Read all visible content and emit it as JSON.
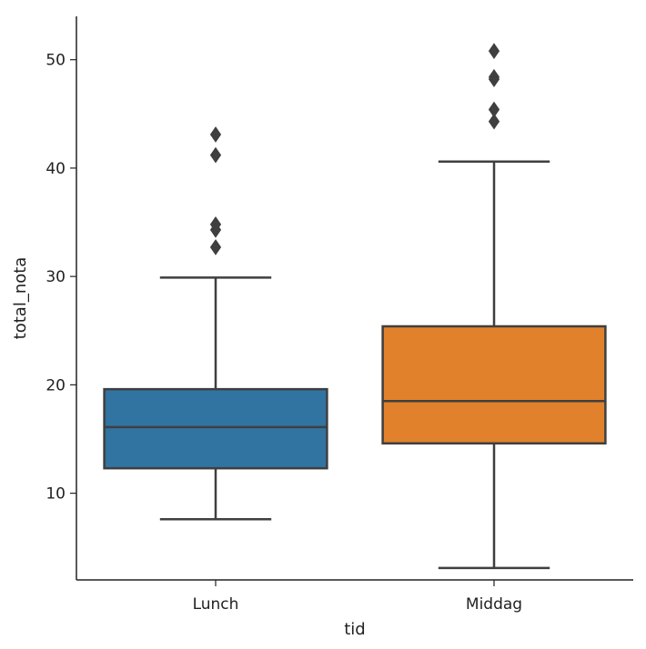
{
  "chart_data": {
    "type": "box",
    "categories": [
      "Lunch",
      "Middag"
    ],
    "xlabel": "tid",
    "ylabel": "total_nota",
    "ylim": [
      2,
      54
    ],
    "yticks": [
      10,
      20,
      30,
      40,
      50
    ],
    "grid": false,
    "boxes": [
      {
        "category": "Lunch",
        "color": "#3274a1",
        "whisker_low": 7.6,
        "q1": 12.3,
        "median": 16.1,
        "q3": 19.6,
        "whisker_high": 29.9,
        "outliers": [
          32.7,
          34.3,
          34.8,
          41.2,
          43.1
        ]
      },
      {
        "category": "Middag",
        "color": "#e1812c",
        "whisker_low": 3.1,
        "q1": 14.6,
        "median": 18.5,
        "q3": 25.4,
        "whisker_high": 40.6,
        "outliers": [
          44.3,
          45.4,
          48.2,
          48.4,
          50.8
        ]
      }
    ]
  }
}
